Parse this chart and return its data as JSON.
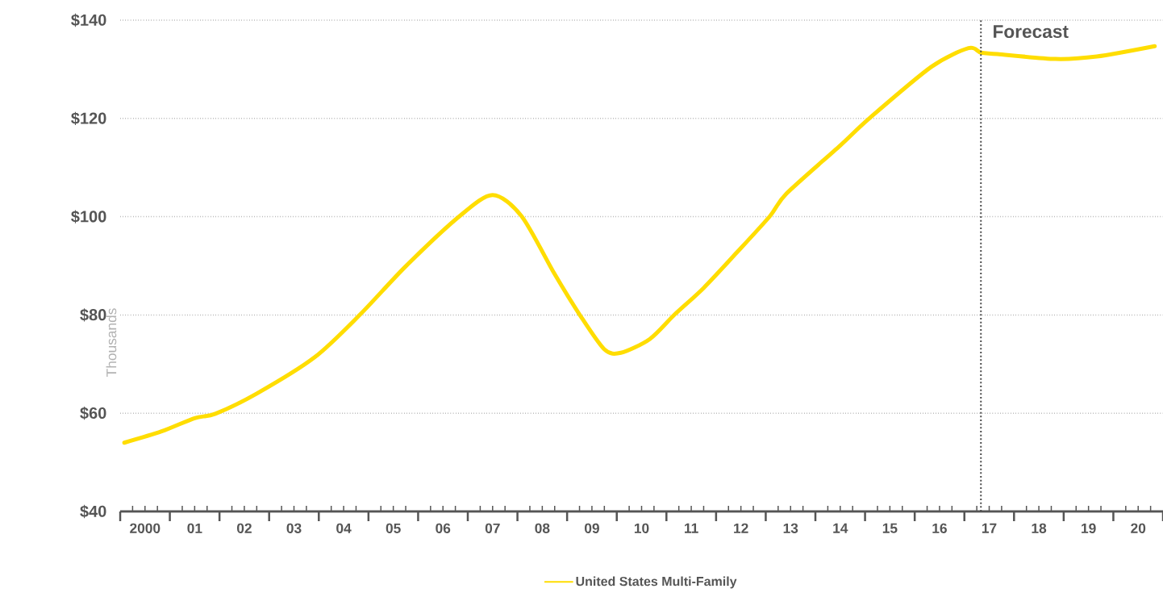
{
  "chart_data": {
    "type": "line",
    "ylabel": "Thousands",
    "x": [
      "2000-02",
      "2000-11",
      "2001-07",
      "2001-12",
      "2002-10",
      "2003-12",
      "2004-11",
      "2005-10",
      "2006-11",
      "2007-07",
      "2008-02",
      "2008-10",
      "2009-04",
      "2009-10",
      "2010-02",
      "2010-09",
      "2011-03",
      "2011-10",
      "2012-06",
      "2013-02",
      "2013-06",
      "2014-07",
      "2015-02",
      "2016-05",
      "2017-02",
      "2017-05",
      "2017-09",
      "2018-11",
      "2019-09",
      "2020-11"
    ],
    "series": [
      {
        "name": "United States Multi-Family",
        "color": "#ffdd00",
        "values": [
          54.0,
          56.3,
          59.0,
          59.9,
          64.0,
          71.4,
          80.1,
          89.9,
          100.1,
          104.4,
          100.1,
          88.3,
          80.1,
          73.0,
          72.3,
          75.1,
          80.1,
          85.5,
          92.7,
          100.1,
          104.7,
          114.5,
          120.0,
          130.5,
          134.3,
          133.4,
          133.1,
          132.1,
          132.6,
          134.7
        ]
      }
    ],
    "xlim": [
      "2000-01",
      "2021-01"
    ],
    "xticks": [
      {
        "value": "2000-01",
        "label": null
      },
      {
        "value": "2000-07",
        "label": "2000"
      },
      {
        "value": "2001-01",
        "label": null
      },
      {
        "value": "2001-07",
        "label": "01"
      },
      {
        "value": "2002-01",
        "label": null
      },
      {
        "value": "2002-07",
        "label": "02"
      },
      {
        "value": "2003-01",
        "label": null
      },
      {
        "value": "2003-07",
        "label": "03"
      },
      {
        "value": "2004-01",
        "label": null
      },
      {
        "value": "2004-07",
        "label": "04"
      },
      {
        "value": "2005-01",
        "label": null
      },
      {
        "value": "2005-07",
        "label": "05"
      },
      {
        "value": "2006-01",
        "label": null
      },
      {
        "value": "2006-07",
        "label": "06"
      },
      {
        "value": "2007-01",
        "label": null
      },
      {
        "value": "2007-07",
        "label": "07"
      },
      {
        "value": "2008-01",
        "label": null
      },
      {
        "value": "2008-07",
        "label": "08"
      },
      {
        "value": "2009-01",
        "label": null
      },
      {
        "value": "2009-07",
        "label": "09"
      },
      {
        "value": "2010-01",
        "label": null
      },
      {
        "value": "2010-07",
        "label": "10"
      },
      {
        "value": "2011-01",
        "label": null
      },
      {
        "value": "2011-07",
        "label": "11"
      },
      {
        "value": "2012-01",
        "label": null
      },
      {
        "value": "2012-07",
        "label": "12"
      },
      {
        "value": "2013-01",
        "label": null
      },
      {
        "value": "2013-07",
        "label": "13"
      },
      {
        "value": "2014-01",
        "label": null
      },
      {
        "value": "2014-07",
        "label": "14"
      },
      {
        "value": "2015-01",
        "label": null
      },
      {
        "value": "2015-07",
        "label": "15"
      },
      {
        "value": "2016-01",
        "label": null
      },
      {
        "value": "2016-07",
        "label": "16"
      },
      {
        "value": "2017-01",
        "label": null
      },
      {
        "value": "2017-07",
        "label": "17"
      },
      {
        "value": "2018-01",
        "label": null
      },
      {
        "value": "2018-07",
        "label": "18"
      },
      {
        "value": "2019-01",
        "label": null
      },
      {
        "value": "2019-07",
        "label": "19"
      },
      {
        "value": "2020-01",
        "label": null
      },
      {
        "value": "2020-07",
        "label": "20"
      },
      {
        "value": "2021-01",
        "label": null
      }
    ],
    "ylim": [
      40,
      140
    ],
    "yticks": [
      {
        "value": 40,
        "label": "$40"
      },
      {
        "value": 60,
        "label": "$60"
      },
      {
        "value": 80,
        "label": "$80"
      },
      {
        "value": 100,
        "label": "$100"
      },
      {
        "value": 120,
        "label": "$120"
      },
      {
        "value": 140,
        "label": "$140"
      }
    ],
    "ref_lines": [
      {
        "axis": "x",
        "value": "2017-05",
        "label": "Forecast",
        "line_style": "dotted"
      }
    ],
    "grid": "y",
    "legend": "bottom",
    "line_style": "solid"
  }
}
